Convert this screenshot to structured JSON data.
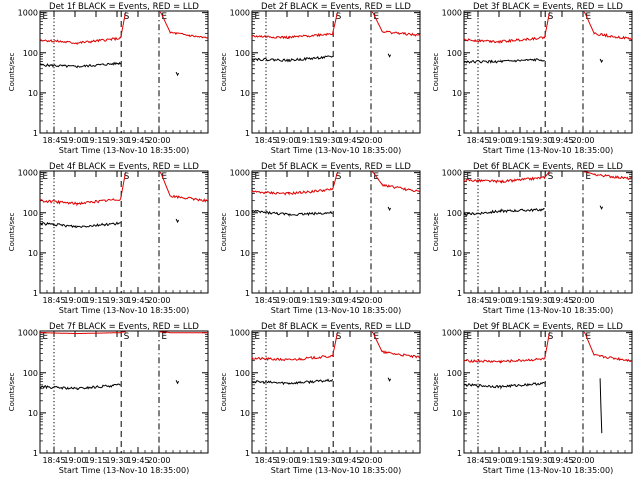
{
  "chart_data": [
    {
      "type": "line",
      "title": "Det 1f BLACK = Events, RED = LLD",
      "ylabel": "Counts/sec",
      "xlabel": "Start Time (13-Nov-10 18:35:00)",
      "x_ticks": [
        "18:45",
        "19:00",
        "19:15",
        "19:30",
        "19:45",
        "20:00"
      ],
      "y_ticks": [
        "1",
        "10",
        "100",
        "1000"
      ],
      "yscale": "log",
      "ylim": [
        1,
        1100
      ],
      "markers": [
        "E",
        "S",
        "E"
      ],
      "series": [
        {
          "name": "BLACK",
          "color": "#000000",
          "segments": [
            [
              [
                0.0,
                50
              ],
              [
                0.44,
                45
              ],
              [
                0.96,
                55
              ]
            ],
            [
              [
                1.62,
                33
              ]
            ]
          ]
        },
        {
          "name": "RED",
          "color": "#e00000",
          "segments": [
            [
              [
                0.0,
                210
              ],
              [
                0.44,
                175
              ],
              [
                0.96,
                230
              ],
              [
                1.02,
                1100
              ]
            ],
            [
              [
                1.43,
                1100
              ],
              [
                1.55,
                320
              ],
              [
                2.0,
                230
              ]
            ]
          ]
        }
      ]
    },
    {
      "type": "line",
      "title": "Det 2f BLACK = Events, RED = LLD",
      "ylabel": "Counts/sec",
      "xlabel": "Start Time (13-Nov-10 18:35:00)",
      "x_ticks": [
        "18:45",
        "19:00",
        "19:15",
        "19:30",
        "19:45",
        "20:00"
      ],
      "y_ticks": [
        "1",
        "10",
        "100",
        "1000"
      ],
      "yscale": "log",
      "ylim": [
        1,
        1100
      ],
      "markers": [
        "E",
        "S",
        "E"
      ],
      "series": [
        {
          "name": "BLACK",
          "color": "#000000",
          "segments": [
            [
              [
                0.0,
                70
              ],
              [
                0.44,
                65
              ],
              [
                0.96,
                80
              ]
            ],
            [
              [
                1.62,
                95
              ]
            ]
          ]
        },
        {
          "name": "RED",
          "color": "#e00000",
          "segments": [
            [
              [
                0.0,
                260
              ],
              [
                0.44,
                240
              ],
              [
                0.96,
                300
              ],
              [
                1.02,
                1100
              ]
            ],
            [
              [
                1.43,
                1100
              ],
              [
                1.55,
                340
              ],
              [
                2.0,
                270
              ]
            ]
          ]
        }
      ]
    },
    {
      "type": "line",
      "title": "Det 3f BLACK = Events, RED = LLD",
      "ylabel": "Counts/sec",
      "xlabel": "Start Time (13-Nov-10 18:35:00)",
      "x_ticks": [
        "18:45",
        "19:00",
        "19:15",
        "19:30",
        "19:45",
        "20:00"
      ],
      "y_ticks": [
        "1",
        "10",
        "100",
        "1000"
      ],
      "yscale": "log",
      "ylim": [
        1,
        1100
      ],
      "markers": [
        "E",
        "S",
        "E"
      ],
      "series": [
        {
          "name": "BLACK",
          "color": "#000000",
          "segments": [
            [
              [
                0.0,
                60
              ],
              [
                0.44,
                60
              ],
              [
                0.96,
                68
              ]
            ],
            [
              [
                1.62,
                70
              ]
            ]
          ]
        },
        {
          "name": "RED",
          "color": "#e00000",
          "segments": [
            [
              [
                0.0,
                210
              ],
              [
                0.44,
                190
              ],
              [
                0.96,
                240
              ],
              [
                1.02,
                1100
              ]
            ],
            [
              [
                1.43,
                1100
              ],
              [
                1.55,
                300
              ],
              [
                2.0,
                220
              ]
            ]
          ]
        }
      ]
    },
    {
      "type": "line",
      "title": "Det 4f BLACK = Events, RED = LLD",
      "ylabel": "Counts/sec",
      "xlabel": "Start Time (13-Nov-10 18:35:00)",
      "x_ticks": [
        "18:45",
        "19:00",
        "19:15",
        "19:30",
        "19:45",
        "20:00"
      ],
      "y_ticks": [
        "1",
        "10",
        "100",
        "1000"
      ],
      "yscale": "log",
      "ylim": [
        1,
        1100
      ],
      "markers": [
        "E",
        "S",
        "E"
      ],
      "series": [
        {
          "name": "BLACK",
          "color": "#000000",
          "segments": [
            [
              [
                0.0,
                55
              ],
              [
                0.44,
                45
              ],
              [
                0.96,
                55
              ]
            ],
            [
              [
                1.62,
                70
              ]
            ]
          ]
        },
        {
          "name": "RED",
          "color": "#e00000",
          "segments": [
            [
              [
                0.0,
                200
              ],
              [
                0.44,
                170
              ],
              [
                0.96,
                220
              ],
              [
                1.02,
                1100
              ]
            ],
            [
              [
                1.43,
                1100
              ],
              [
                1.55,
                260
              ],
              [
                2.0,
                200
              ]
            ]
          ]
        }
      ]
    },
    {
      "type": "line",
      "title": "Det 5f BLACK = Events, RED = LLD",
      "ylabel": "Counts/sec",
      "xlabel": "Start Time (13-Nov-10 18:35:00)",
      "x_ticks": [
        "18:45",
        "19:00",
        "19:15",
        "19:30",
        "19:45",
        "20:00"
      ],
      "y_ticks": [
        "1",
        "10",
        "100",
        "1000"
      ],
      "yscale": "log",
      "ylim": [
        1,
        1100
      ],
      "markers": [
        "E",
        "S",
        "E"
      ],
      "series": [
        {
          "name": "BLACK",
          "color": "#000000",
          "segments": [
            [
              [
                0.0,
                110
              ],
              [
                0.44,
                90
              ],
              [
                0.96,
                100
              ]
            ],
            [
              [
                1.62,
                140
              ]
            ]
          ]
        },
        {
          "name": "RED",
          "color": "#e00000",
          "segments": [
            [
              [
                0.0,
                330
              ],
              [
                0.44,
                300
              ],
              [
                0.96,
                380
              ],
              [
                1.02,
                1100
              ]
            ],
            [
              [
                1.43,
                1100
              ],
              [
                1.55,
                500
              ],
              [
                2.0,
                330
              ]
            ]
          ]
        }
      ]
    },
    {
      "type": "line",
      "title": "Det 6f BLACK = Events, RED = LLD",
      "ylabel": "Counts/sec",
      "xlabel": "Start Time (13-Nov-10 18:35:00)",
      "x_ticks": [
        "18:45",
        "19:00",
        "19:15",
        "19:30",
        "19:45",
        "20:00"
      ],
      "y_ticks": [
        "1",
        "10",
        "100",
        "1000"
      ],
      "yscale": "log",
      "ylim": [
        1,
        1100
      ],
      "markers": [
        "E",
        "S",
        "E"
      ],
      "series": [
        {
          "name": "BLACK",
          "color": "#000000",
          "segments": [
            [
              [
                0.0,
                90
              ],
              [
                0.44,
                110
              ],
              [
                0.96,
                120
              ]
            ],
            [
              [
                1.62,
                150
              ]
            ]
          ]
        },
        {
          "name": "RED",
          "color": "#e00000",
          "segments": [
            [
              [
                0.0,
                650
              ],
              [
                0.44,
                600
              ],
              [
                0.96,
                750
              ],
              [
                1.02,
                1100
              ]
            ],
            [
              [
                1.43,
                1100
              ],
              [
                1.55,
                900
              ],
              [
                2.0,
                700
              ]
            ]
          ]
        }
      ]
    },
    {
      "type": "line",
      "title": "Det 7f BLACK = Events, RED = LLD",
      "ylabel": "Counts/sec",
      "xlabel": "Start Time (13-Nov-10 18:35:00)",
      "x_ticks": [
        "18:45",
        "19:00",
        "19:15",
        "19:30",
        "19:45",
        "20:00"
      ],
      "y_ticks": [
        "1",
        "10",
        "100",
        "1000"
      ],
      "yscale": "log",
      "ylim": [
        1,
        1100
      ],
      "markers": [
        "E",
        "S",
        "E"
      ],
      "series": [
        {
          "name": "BLACK",
          "color": "#000000",
          "segments": [
            [
              [
                0.0,
                45
              ],
              [
                0.44,
                40
              ],
              [
                0.96,
                50
              ]
            ],
            [
              [
                1.62,
                65
              ]
            ]
          ]
        },
        {
          "name": "RED",
          "color": "#e00000",
          "segments": [
            [
              [
                0.0,
                1000
              ],
              [
                0.44,
                950
              ],
              [
                0.96,
                1000
              ],
              [
                1.02,
                1100
              ]
            ],
            [
              [
                1.43,
                1100
              ],
              [
                1.55,
                1000
              ],
              [
                2.0,
                1000
              ]
            ]
          ]
        }
      ]
    },
    {
      "type": "line",
      "title": "Det 8f BLACK = Events, RED = LLD",
      "ylabel": "Counts/sec",
      "xlabel": "Start Time (13-Nov-10 18:35:00)",
      "x_ticks": [
        "18:45",
        "19:00",
        "19:15",
        "19:30",
        "19:45",
        "20:00"
      ],
      "y_ticks": [
        "1",
        "10",
        "100",
        "1000"
      ],
      "yscale": "log",
      "ylim": [
        1,
        1100
      ],
      "markers": [
        "E",
        "S",
        "E"
      ],
      "series": [
        {
          "name": "BLACK",
          "color": "#000000",
          "segments": [
            [
              [
                0.0,
                60
              ],
              [
                0.44,
                55
              ],
              [
                0.96,
                65
              ]
            ],
            [
              [
                1.62,
                75
              ]
            ]
          ]
        },
        {
          "name": "RED",
          "color": "#e00000",
          "segments": [
            [
              [
                0.0,
                230
              ],
              [
                0.44,
                210
              ],
              [
                0.96,
                260
              ],
              [
                1.02,
                1100
              ]
            ],
            [
              [
                1.43,
                1100
              ],
              [
                1.55,
                330
              ],
              [
                2.0,
                240
              ]
            ]
          ]
        }
      ]
    },
    {
      "type": "line",
      "title": "Det 9f BLACK = Events, RED = LLD",
      "ylabel": "Counts/sec",
      "xlabel": "Start Time (13-Nov-10 18:35:00)",
      "x_ticks": [
        "18:45",
        "19:00",
        "19:15",
        "19:30",
        "19:45",
        "20:00"
      ],
      "y_ticks": [
        "1",
        "10",
        "100",
        "1000"
      ],
      "yscale": "log",
      "ylim": [
        1,
        1100
      ],
      "markers": [
        "E",
        "S",
        "E"
      ],
      "series": [
        {
          "name": "BLACK",
          "color": "#000000",
          "segments": [
            [
              [
                0.0,
                50
              ],
              [
                0.44,
                45
              ],
              [
                0.96,
                55
              ]
            ],
            [
              [
                1.62,
                70
              ],
              [
                1.64,
                3
              ]
            ]
          ]
        },
        {
          "name": "RED",
          "color": "#e00000",
          "segments": [
            [
              [
                0.0,
                200
              ],
              [
                0.44,
                190
              ],
              [
                0.96,
                220
              ],
              [
                1.02,
                1100
              ]
            ],
            [
              [
                1.43,
                1100
              ],
              [
                1.55,
                270
              ],
              [
                2.0,
                200
              ]
            ]
          ]
        }
      ]
    }
  ]
}
